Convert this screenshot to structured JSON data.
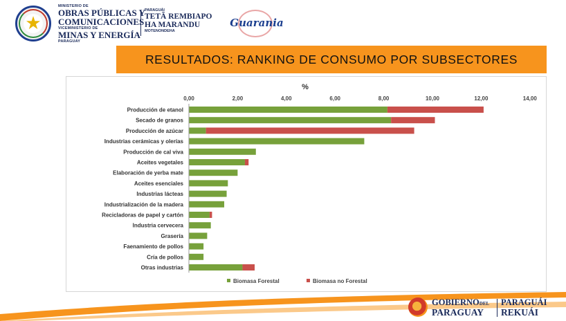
{
  "header": {
    "ministry_line1": "MINISTERIO DE",
    "ministry_line2": "OBRAS PÚBLICAS Y",
    "ministry_line3": "COMUNICACIONES",
    "ministry_line4": "VICEMINISTERIO DE",
    "ministry_line5": "MINAS Y ENERGÍA",
    "ministry_line6": "PARAGUAY",
    "tagline_small": "PARAGUÁI",
    "tagline_line1": "TETÃ REMBIAPO",
    "tagline_line2": "HA MARANDU",
    "tagline_line3": "MOTENONDEHA",
    "guarania_logo": "Guarania"
  },
  "banner": {
    "title": "RESULTADOS: RANKING DE CONSUMO POR SUBSECTORES"
  },
  "footer": {
    "gov_line1": "GOBIERNO",
    "gov_del": "DEL",
    "gov_line2": "PARAGUAY",
    "gov_right1": "PARAGUÁI",
    "gov_right2": "REKUÁI"
  },
  "colors": {
    "forestal": "#77a13b",
    "no_forestal": "#c9504b",
    "banner": "#f7941d",
    "navy": "#1a2a5a"
  },
  "chart_data": {
    "type": "bar",
    "orientation": "horizontal",
    "stacked": true,
    "title": "%",
    "xlim": [
      0,
      14
    ],
    "xticks": [
      "0,00",
      "2,00",
      "4,00",
      "6,00",
      "8,00",
      "10,00",
      "12,00",
      "14,00"
    ],
    "x_axis_position": "top",
    "grid": false,
    "legend_position": "bottom",
    "categories": [
      "Producción de etanol",
      "Secado de granos",
      "Producción de azúcar",
      "Industrias cerámicas y olerías",
      "Producción de cal viva",
      "Aceites vegetales",
      "Elaboración de yerba mate",
      "Aceites esenciales",
      "Industrias lácteas",
      "Industrialización de la madera",
      "Recicladoras de papel y cartón",
      "Industria cervecera",
      "Grasería",
      "Faenamiento de pollos",
      "Cría de pollos",
      "Otras industrias"
    ],
    "series": [
      {
        "name": "Biomasa Forestal",
        "color": "#77a13b",
        "values": [
          8.15,
          8.3,
          0.7,
          7.2,
          2.75,
          2.3,
          2.0,
          1.6,
          1.55,
          1.45,
          0.85,
          0.9,
          0.75,
          0.6,
          0.6,
          2.2
        ]
      },
      {
        "name": "Biomasa no Forestal",
        "color": "#c9504b",
        "values": [
          3.95,
          1.8,
          8.55,
          0.0,
          0.0,
          0.15,
          0.0,
          0.0,
          0.0,
          0.0,
          0.1,
          0.0,
          0.0,
          0.0,
          0.0,
          0.5
        ]
      }
    ]
  }
}
